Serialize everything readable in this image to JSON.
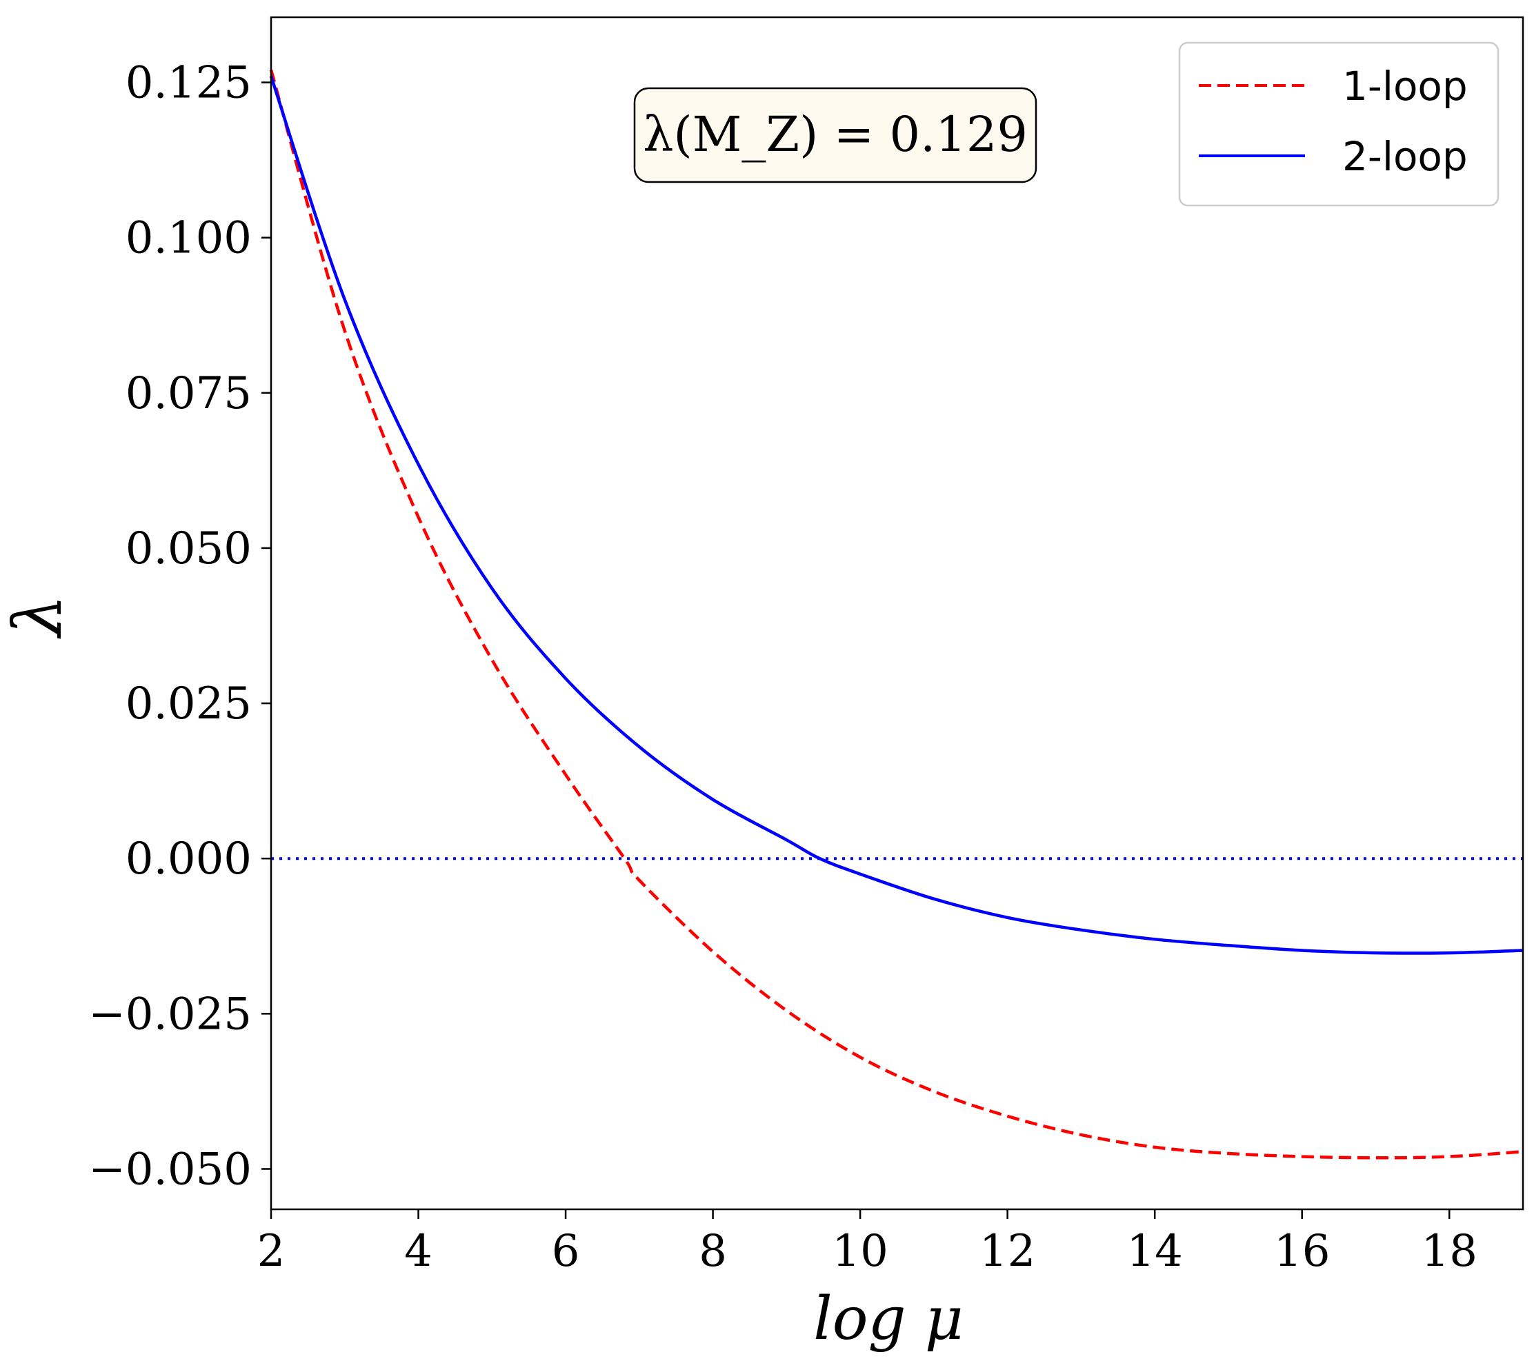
{
  "chart_data": {
    "type": "line",
    "title": "",
    "xlabel": "log μ",
    "ylabel": "λ",
    "xlim": [
      2,
      19
    ],
    "ylim": [
      -0.0565,
      0.1355
    ],
    "xticks": [
      2,
      4,
      6,
      8,
      10,
      12,
      14,
      16,
      18
    ],
    "xtick_labels": [
      "2",
      "4",
      "6",
      "8",
      "10",
      "12",
      "14",
      "16",
      "18"
    ],
    "yticks": [
      -0.05,
      -0.025,
      0,
      0.025,
      0.05,
      0.075,
      0.1,
      0.125
    ],
    "ytick_labels": [
      "−0.050",
      "−0.025",
      "0.000",
      "0.025",
      "0.050",
      "0.075",
      "0.100",
      "0.125"
    ],
    "grid": false,
    "legend_position": "top-right",
    "annotation": "λ(M_Z) = 0.129",
    "reference_line": {
      "y": 0,
      "style": "dotted",
      "color": "#0000ff"
    },
    "series": [
      {
        "name": "1-loop",
        "style": "dashed",
        "color": "#ff0000",
        "x": [
          2,
          3,
          4,
          5,
          6,
          6.8,
          7,
          8,
          9,
          10,
          11,
          12,
          13,
          14,
          15,
          16,
          17,
          18,
          19
        ],
        "y": [
          0.127,
          0.085,
          0.055,
          0.032,
          0.0135,
          0.0,
          -0.0035,
          -0.015,
          -0.0245,
          -0.032,
          -0.0375,
          -0.0415,
          -0.0445,
          -0.0465,
          -0.0475,
          -0.048,
          -0.0482,
          -0.048,
          -0.0472
        ]
      },
      {
        "name": "2-loop",
        "style": "solid",
        "color": "#0000ff",
        "x": [
          2,
          3,
          4,
          5,
          6,
          7,
          8,
          9,
          9.45,
          10,
          11,
          12,
          13,
          14,
          15,
          16,
          17,
          18,
          19
        ],
        "y": [
          0.126,
          0.09,
          0.0635,
          0.0435,
          0.029,
          0.018,
          0.0095,
          0.003,
          0.0,
          -0.0025,
          -0.0065,
          -0.0095,
          -0.0115,
          -0.013,
          -0.014,
          -0.0148,
          -0.0152,
          -0.0152,
          -0.0148
        ]
      }
    ]
  }
}
